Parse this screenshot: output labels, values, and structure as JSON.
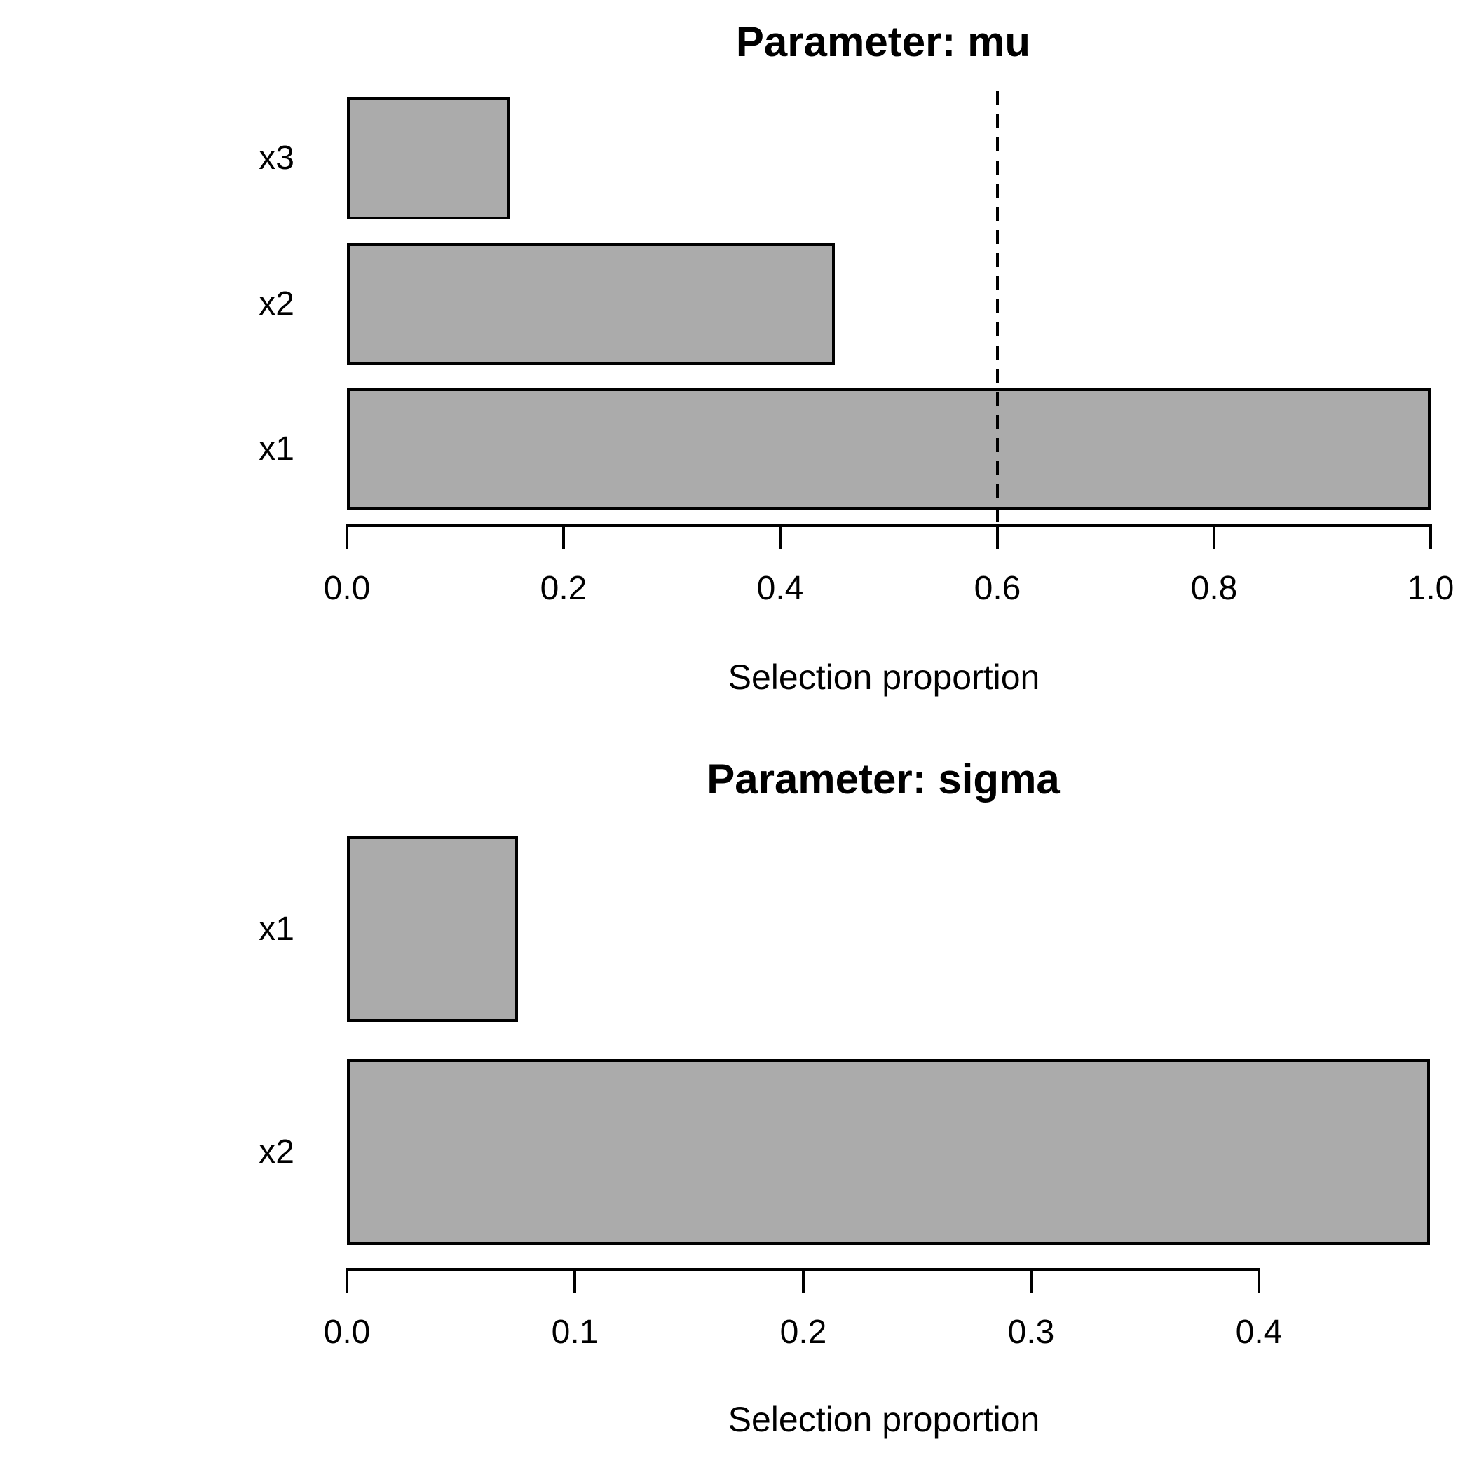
{
  "page": {
    "background_color": "#ffffff",
    "text_color": "#000000"
  },
  "chart_data": [
    {
      "type": "bar",
      "orientation": "horizontal",
      "title": "Parameter: mu",
      "xlabel": "Selection proportion",
      "categories": [
        "x3",
        "x2",
        "x1"
      ],
      "values": [
        0.15,
        0.45,
        1.0
      ],
      "xlim": [
        0.0,
        1.0
      ],
      "xticks": [
        "0.0",
        "0.2",
        "0.4",
        "0.6",
        "0.8",
        "1.0"
      ],
      "xtick_values": [
        0.0,
        0.2,
        0.4,
        0.6,
        0.8,
        1.0
      ],
      "reference_line": {
        "value": 0.6,
        "style": "dashed",
        "color": "#000000"
      },
      "bar_fill": "#ababab",
      "bar_border": "#000000",
      "grid": false,
      "legend": false
    },
    {
      "type": "bar",
      "orientation": "horizontal",
      "title": "Parameter: sigma",
      "xlabel": "Selection proportion",
      "categories": [
        "x1",
        "x2"
      ],
      "values": [
        0.075,
        0.475
      ],
      "xlim": [
        0.0,
        0.4
      ],
      "xticks": [
        "0.0",
        "0.1",
        "0.2",
        "0.3",
        "0.4"
      ],
      "xtick_values": [
        0.0,
        0.1,
        0.2,
        0.3,
        0.4
      ],
      "reference_line": null,
      "bar_fill": "#ababab",
      "bar_border": "#000000",
      "grid": false,
      "legend": false
    }
  ]
}
